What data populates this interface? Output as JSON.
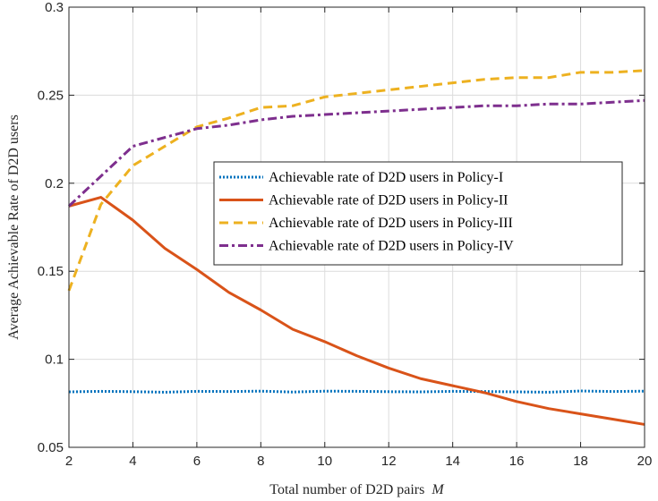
{
  "chart_data": {
    "type": "line",
    "title": "",
    "xlabel": "Total number of D2D pairs",
    "xlabel_var": "M",
    "ylabel": "Average Achievable Rate of D2D users",
    "xlim": [
      2,
      20
    ],
    "ylim": [
      0.05,
      0.3
    ],
    "xticks": [
      2,
      4,
      6,
      8,
      10,
      12,
      14,
      16,
      18,
      20
    ],
    "yticks": [
      0.05,
      0.1,
      0.15,
      0.2,
      0.25,
      0.3
    ],
    "ytick_labels": [
      "0.05",
      "0.1",
      "0.15",
      "0.2",
      "0.25",
      "0.3"
    ],
    "grid": true,
    "legend_position": "center-right",
    "x": [
      2,
      3,
      4,
      5,
      6,
      7,
      8,
      9,
      10,
      11,
      12,
      13,
      14,
      15,
      16,
      17,
      18,
      19,
      20
    ],
    "series": [
      {
        "name": "Achievable rate of D2D users in Policy-I",
        "color": "#0072BD",
        "style": "dotted",
        "values": [
          0.0815,
          0.0818,
          0.0816,
          0.0813,
          0.0818,
          0.0817,
          0.0819,
          0.0814,
          0.0819,
          0.0818,
          0.0816,
          0.0815,
          0.0818,
          0.0817,
          0.0815,
          0.0813,
          0.082,
          0.0817,
          0.0819
        ]
      },
      {
        "name": "Achievable rate of D2D users in Policy-II",
        "color": "#D95319",
        "style": "solid",
        "values": [
          0.187,
          0.192,
          0.179,
          0.163,
          0.151,
          0.138,
          0.128,
          0.117,
          0.11,
          0.102,
          0.095,
          0.089,
          0.085,
          0.081,
          0.076,
          0.072,
          0.069,
          0.066,
          0.063
        ]
      },
      {
        "name": "Achievable rate of D2D users in Policy-III",
        "color": "#EDB120",
        "style": "dashed",
        "values": [
          0.139,
          0.188,
          0.21,
          0.221,
          0.232,
          0.237,
          0.243,
          0.244,
          0.249,
          0.251,
          0.253,
          0.255,
          0.257,
          0.259,
          0.26,
          0.26,
          0.263,
          0.263,
          0.264
        ]
      },
      {
        "name": "Achievable rate of D2D users in Policy-IV",
        "color": "#7E2F8E",
        "style": "dashdot",
        "values": [
          0.187,
          0.204,
          0.221,
          0.226,
          0.231,
          0.233,
          0.236,
          0.238,
          0.239,
          0.24,
          0.241,
          0.242,
          0.243,
          0.244,
          0.244,
          0.245,
          0.245,
          0.246,
          0.247
        ]
      }
    ]
  }
}
